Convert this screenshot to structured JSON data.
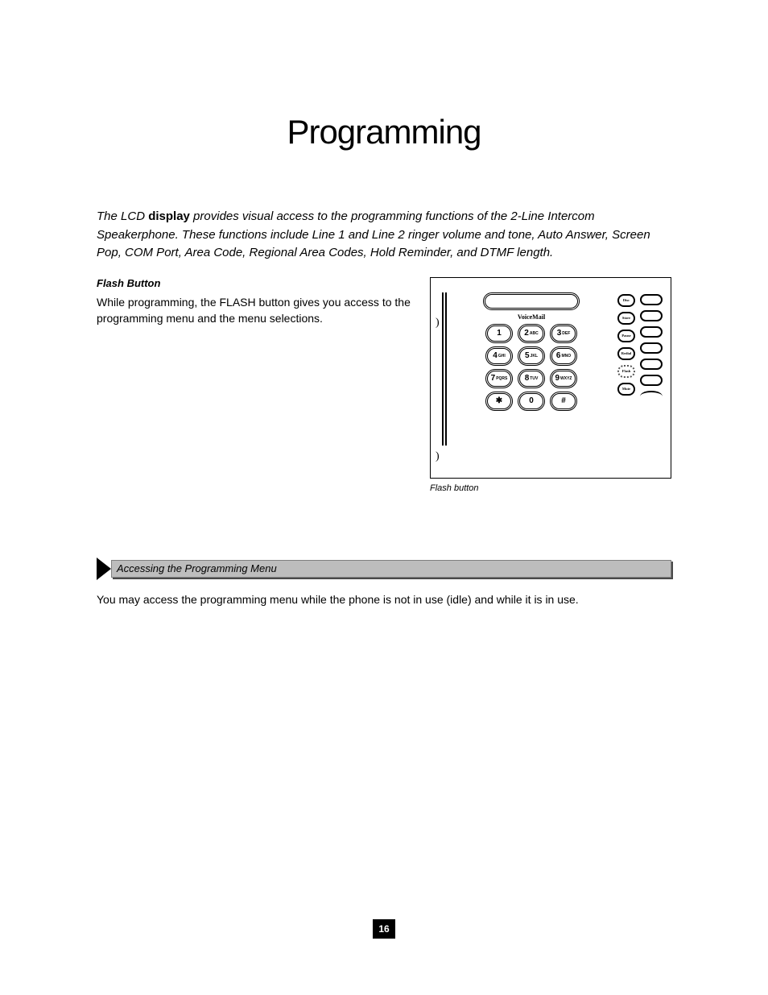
{
  "title": "Programming",
  "intro": {
    "text_a": "The LCD ",
    "term": "display",
    "text_b": " provides visual access to the programming functions of the 2-Line Intercom Speakerphone. These functions include Line 1 and Line 2 ringer volume and tone, Auto Answer, Screen Pop, COM Port, Area Code, Regional Area Codes, Hold Reminder, and DTMF length."
  },
  "flash_section": {
    "heading": "Flash Button",
    "text": "While programming, the FLASH button gives you access to the programming menu and the menu selections."
  },
  "keypad": {
    "vm_label": "VoiceMail",
    "rows": [
      [
        {
          "d": "1",
          "l": ""
        },
        {
          "d": "2",
          "l": "ABC"
        },
        {
          "d": "3",
          "l": "DEF"
        }
      ],
      [
        {
          "d": "4",
          "l": "GHI"
        },
        {
          "d": "5",
          "l": "JKL"
        },
        {
          "d": "6",
          "l": "MNO"
        }
      ],
      [
        {
          "d": "7",
          "l": "PQRS"
        },
        {
          "d": "8",
          "l": "TUV"
        },
        {
          "d": "9",
          "l": "WXYZ"
        }
      ],
      [
        {
          "d": "✱",
          "l": ""
        },
        {
          "d": "0",
          "l": ""
        },
        {
          "d": "#",
          "l": ""
        }
      ]
    ],
    "side_buttons": [
      "Disc",
      "Store",
      "Pause",
      "Redial",
      "Flash",
      "Mute"
    ],
    "flash_index": 4,
    "right_pill_count": 7,
    "caption": "Flash button"
  },
  "programming_menu": {
    "bar_label": "Accessing the Programming Menu",
    "after": "You may access the programming menu while the phone is not in use (idle) and while it is in use."
  },
  "page_number": "16",
  "colors": {
    "bar_bg": "#bdbdbd",
    "bar_border": "#808080",
    "bar_shadow": "#4a4a4a",
    "pageno_bg": "#000000",
    "pageno_fg": "#ffffff"
  }
}
